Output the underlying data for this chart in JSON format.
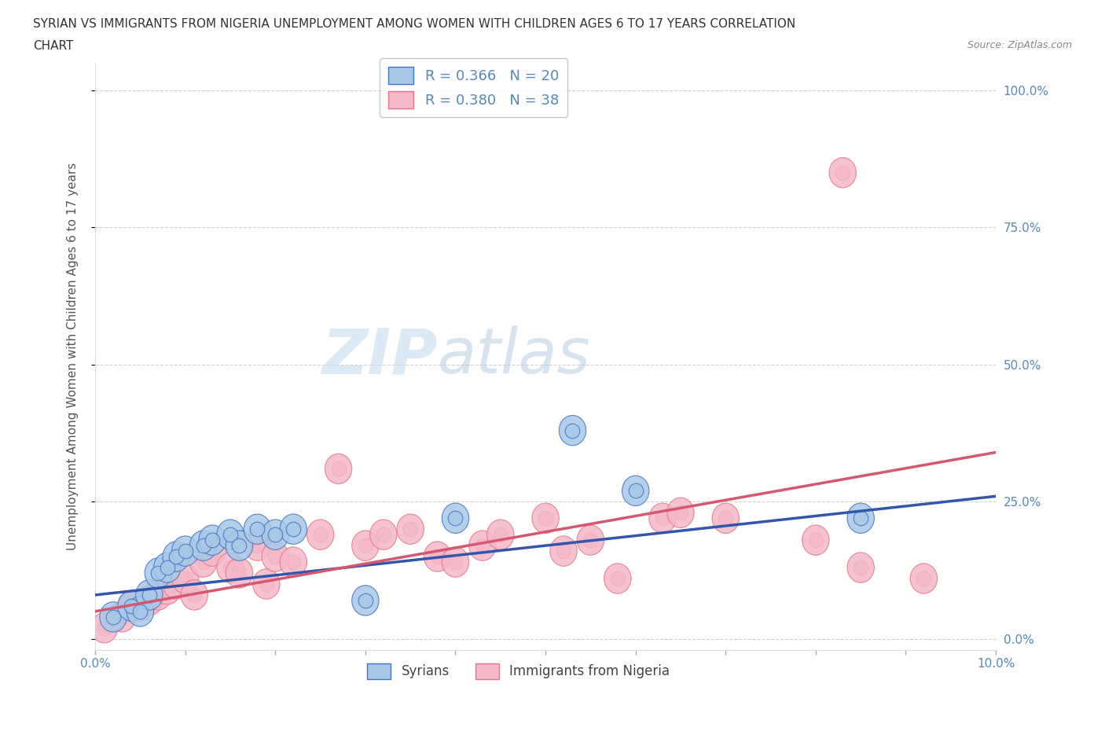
{
  "title_line1": "SYRIAN VS IMMIGRANTS FROM NIGERIA UNEMPLOYMENT AMONG WOMEN WITH CHILDREN AGES 6 TO 17 YEARS CORRELATION",
  "title_line2": "CHART",
  "source": "Source: ZipAtlas.com",
  "ylabel": "Unemployment Among Women with Children Ages 6 to 17 years",
  "xlim": [
    0.0,
    0.1
  ],
  "ylim": [
    -0.02,
    1.05
  ],
  "watermark_text": "ZIPatlas",
  "watermark_color": "#c8dff0",
  "legend_r1": "R = 0.366   N = 20",
  "legend_r2": "R = 0.380   N = 38",
  "syrian_face_color": "#a8c8e8",
  "syrian_edge_color": "#4472C4",
  "nigeria_face_color": "#f4b8c8",
  "nigeria_edge_color": "#E8748A",
  "syrian_line_color": "#3355AA",
  "nigeria_line_color": "#D45870",
  "background_color": "#ffffff",
  "grid_color": "#d0d0d0",
  "tick_color": "#5588bb",
  "ytick_positions": [
    0.0,
    0.25,
    0.5,
    0.75,
    1.0
  ],
  "syrian_scatter_x": [
    0.002,
    0.004,
    0.005,
    0.006,
    0.007,
    0.008,
    0.009,
    0.01,
    0.012,
    0.013,
    0.015,
    0.016,
    0.018,
    0.02,
    0.022,
    0.03,
    0.04,
    0.053,
    0.06,
    0.085
  ],
  "syrian_scatter_y": [
    0.04,
    0.06,
    0.05,
    0.08,
    0.12,
    0.13,
    0.15,
    0.16,
    0.17,
    0.18,
    0.19,
    0.17,
    0.2,
    0.19,
    0.2,
    0.07,
    0.22,
    0.38,
    0.27,
    0.22
  ],
  "nigeria_scatter_x": [
    0.001,
    0.003,
    0.004,
    0.005,
    0.006,
    0.007,
    0.008,
    0.009,
    0.01,
    0.011,
    0.012,
    0.013,
    0.015,
    0.016,
    0.018,
    0.019,
    0.02,
    0.022,
    0.025,
    0.027,
    0.03,
    0.032,
    0.035,
    0.038,
    0.04,
    0.043,
    0.045,
    0.05,
    0.052,
    0.055,
    0.058,
    0.063,
    0.065,
    0.07,
    0.08,
    0.083,
    0.085,
    0.092
  ],
  "nigeria_scatter_y": [
    0.02,
    0.04,
    0.06,
    0.06,
    0.07,
    0.08,
    0.09,
    0.1,
    0.11,
    0.08,
    0.14,
    0.16,
    0.13,
    0.12,
    0.17,
    0.1,
    0.15,
    0.14,
    0.19,
    0.31,
    0.17,
    0.19,
    0.2,
    0.15,
    0.14,
    0.17,
    0.19,
    0.22,
    0.16,
    0.18,
    0.11,
    0.22,
    0.23,
    0.22,
    0.18,
    0.85,
    0.13,
    0.11
  ]
}
